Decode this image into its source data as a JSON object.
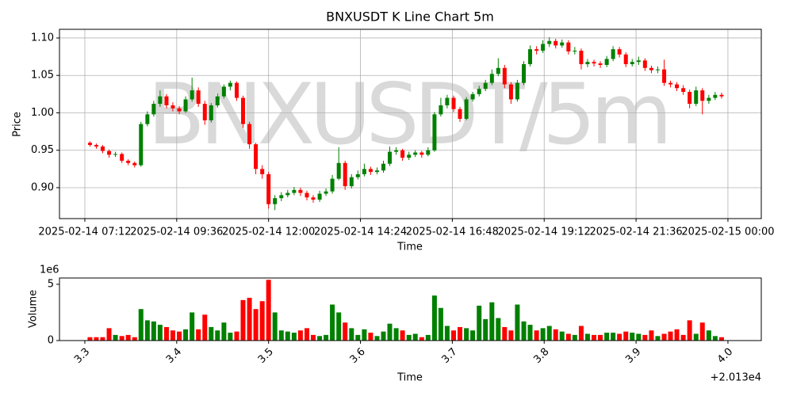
{
  "chart_data": [
    {
      "type": "candlestick",
      "title": "BNXUSDT K Line Chart 5m",
      "watermark": "BNXUSDT/5m",
      "xlabel": "Time",
      "ylabel": "Price",
      "up_color": "#008000",
      "down_color": "#ff0000",
      "grid": true,
      "xlim": [
        3.2724,
        4.0363
      ],
      "ylim": [
        0.8587,
        1.1116
      ],
      "xticks": [
        {
          "value": 3.3,
          "label": "2025-02-14 07:12"
        },
        {
          "value": 3.4,
          "label": "2025-02-14 09:36"
        },
        {
          "value": 3.5,
          "label": "2025-02-14 12:00"
        },
        {
          "value": 3.6,
          "label": "2025-02-14 14:24"
        },
        {
          "value": 3.7,
          "label": "2025-02-14 16:48"
        },
        {
          "value": 3.8,
          "label": "2025-02-14 19:12"
        },
        {
          "value": 3.9,
          "label": "2025-02-14 21:36"
        },
        {
          "value": 4.0,
          "label": "2025-02-15 00:00"
        }
      ],
      "yticks": [
        {
          "value": 0.9,
          "label": "0.90"
        },
        0.95,
        {
          "value": 1.0,
          "label": "1.00"
        },
        1.05,
        {
          "value": 1.1,
          "label": "1.10"
        }
      ],
      "x": [
        3.3056,
        3.3125,
        3.3194,
        3.3264,
        3.3333,
        3.3403,
        3.3472,
        3.3542,
        3.3611,
        3.3681,
        3.375,
        3.3819,
        3.3889,
        3.3958,
        3.4028,
        3.4097,
        3.4167,
        3.4236,
        3.4306,
        3.4375,
        3.4444,
        3.4514,
        3.4583,
        3.4653,
        3.4722,
        3.4792,
        3.4861,
        3.4931,
        3.5,
        3.5069,
        3.5139,
        3.5208,
        3.5278,
        3.5347,
        3.5417,
        3.5486,
        3.5556,
        3.5625,
        3.5694,
        3.5764,
        3.5833,
        3.5903,
        3.5972,
        3.6042,
        3.6111,
        3.6181,
        3.625,
        3.6319,
        3.6389,
        3.6458,
        3.6528,
        3.6597,
        3.6667,
        3.6736,
        3.6806,
        3.6875,
        3.6944,
        3.7014,
        3.7083,
        3.7153,
        3.7222,
        3.7292,
        3.7361,
        3.7431,
        3.75,
        3.7569,
        3.7639,
        3.7708,
        3.7778,
        3.7847,
        3.7917,
        3.7986,
        3.8056,
        3.8125,
        3.8194,
        3.8264,
        3.8333,
        3.8403,
        3.8472,
        3.8542,
        3.8611,
        3.8681,
        3.875,
        3.8819,
        3.8889,
        3.8958,
        3.9028,
        3.9097,
        3.9167,
        3.9236,
        3.9306,
        3.9375,
        3.9444,
        3.9514,
        3.9583,
        3.9653,
        3.9722,
        3.9792,
        3.9861,
        3.9931
      ],
      "open": [
        0.96,
        0.957,
        0.955,
        0.949,
        0.944,
        0.945,
        0.936,
        0.933,
        0.93,
        0.985,
        0.998,
        1.012,
        1.022,
        1.01,
        1.006,
        1.002,
        1.018,
        1.03,
        1.012,
        0.99,
        1.01,
        1.022,
        1.035,
        1.04,
        1.02,
        0.985,
        0.958,
        0.925,
        0.918,
        0.878,
        0.886,
        0.89,
        0.893,
        0.897,
        0.893,
        0.887,
        0.884,
        0.892,
        0.895,
        0.912,
        0.933,
        0.902,
        0.914,
        0.918,
        0.925,
        0.921,
        0.923,
        0.932,
        0.948,
        0.95,
        0.94,
        0.944,
        0.947,
        0.944,
        0.95,
        0.998,
        1.01,
        1.02,
        1.005,
        0.992,
        1.018,
        1.025,
        1.032,
        1.04,
        1.052,
        1.06,
        1.038,
        1.018,
        1.04,
        1.065,
        1.085,
        1.083,
        1.092,
        1.096,
        1.09,
        1.094,
        1.082,
        1.083,
        1.065,
        1.068,
        1.066,
        1.064,
        1.072,
        1.085,
        1.078,
        1.065,
        1.068,
        1.07,
        1.06,
        1.057,
        1.058,
        1.04,
        1.038,
        1.033,
        1.028,
        1.012,
        1.03,
        1.016,
        1.02,
        1.024
      ],
      "high": [
        0.962,
        0.959,
        0.957,
        0.951,
        0.948,
        0.947,
        0.938,
        0.935,
        0.988,
        1.002,
        1.016,
        1.03,
        1.025,
        1.014,
        1.009,
        1.022,
        1.047,
        1.034,
        1.016,
        1.013,
        1.026,
        1.038,
        1.043,
        1.042,
        1.023,
        0.988,
        0.96,
        0.93,
        0.921,
        0.89,
        0.894,
        0.897,
        0.901,
        0.9,
        0.896,
        0.89,
        0.896,
        0.899,
        0.917,
        0.954,
        0.936,
        0.918,
        0.923,
        0.932,
        0.928,
        0.927,
        0.936,
        0.955,
        0.954,
        0.952,
        0.948,
        0.95,
        0.949,
        0.954,
        1.001,
        1.02,
        1.024,
        1.023,
        1.008,
        1.021,
        1.028,
        1.036,
        1.044,
        1.058,
        1.073,
        1.064,
        1.041,
        1.044,
        1.069,
        1.09,
        1.089,
        1.097,
        1.101,
        1.099,
        1.098,
        1.097,
        1.088,
        1.086,
        1.072,
        1.071,
        1.069,
        1.076,
        1.089,
        1.088,
        1.081,
        1.072,
        1.075,
        1.073,
        1.063,
        1.062,
        1.071,
        1.043,
        1.041,
        1.037,
        1.031,
        1.035,
        1.033,
        1.024,
        1.028,
        1.027
      ],
      "low": [
        0.955,
        0.952,
        0.946,
        0.94,
        0.941,
        0.933,
        0.93,
        0.927,
        0.928,
        0.982,
        0.995,
        1.008,
        1.006,
        1.002,
        0.998,
        1.0,
        1.015,
        1.008,
        0.984,
        0.987,
        1.007,
        1.019,
        1.03,
        1.016,
        0.98,
        0.952,
        0.918,
        0.912,
        0.872,
        0.87,
        0.882,
        0.887,
        0.89,
        0.889,
        0.883,
        0.88,
        0.881,
        0.889,
        0.892,
        0.91,
        0.897,
        0.899,
        0.911,
        0.915,
        0.917,
        0.918,
        0.92,
        0.929,
        0.944,
        0.936,
        0.937,
        0.941,
        0.94,
        0.942,
        0.948,
        0.995,
        1.006,
        1.001,
        0.988,
        0.99,
        1.015,
        1.022,
        1.029,
        1.037,
        1.049,
        1.033,
        1.012,
        1.015,
        1.037,
        1.062,
        1.078,
        1.08,
        1.088,
        1.086,
        1.087,
        1.078,
        1.078,
        1.058,
        1.061,
        1.062,
        1.06,
        1.061,
        1.069,
        1.074,
        1.061,
        1.062,
        1.064,
        1.056,
        1.053,
        1.053,
        1.036,
        1.034,
        1.029,
        1.024,
        1.006,
        1.009,
        0.998,
        1.012,
        1.017,
        1.019
      ],
      "close": [
        0.957,
        0.955,
        0.949,
        0.944,
        0.945,
        0.936,
        0.933,
        0.93,
        0.985,
        0.998,
        1.012,
        1.022,
        1.01,
        1.006,
        1.002,
        1.018,
        1.03,
        1.012,
        0.99,
        1.01,
        1.022,
        1.035,
        1.04,
        1.02,
        0.985,
        0.958,
        0.925,
        0.918,
        0.878,
        0.886,
        0.89,
        0.893,
        0.897,
        0.893,
        0.887,
        0.884,
        0.892,
        0.895,
        0.912,
        0.933,
        0.902,
        0.914,
        0.918,
        0.925,
        0.921,
        0.923,
        0.932,
        0.948,
        0.95,
        0.94,
        0.944,
        0.947,
        0.944,
        0.95,
        0.998,
        1.01,
        1.02,
        1.005,
        0.992,
        1.018,
        1.025,
        1.032,
        1.04,
        1.052,
        1.06,
        1.038,
        1.018,
        1.04,
        1.065,
        1.085,
        1.083,
        1.092,
        1.096,
        1.09,
        1.094,
        1.082,
        1.083,
        1.065,
        1.068,
        1.066,
        1.064,
        1.072,
        1.085,
        1.078,
        1.065,
        1.068,
        1.07,
        1.06,
        1.057,
        1.058,
        1.04,
        1.038,
        1.033,
        1.028,
        1.012,
        1.03,
        1.016,
        1.02,
        1.024,
        1.022
      ]
    },
    {
      "type": "volume",
      "xlabel": "Time",
      "ylabel": "Volume",
      "y_offset_label": "1e6",
      "x_offset_label": "+2.013e4",
      "xlim": [
        3.2724,
        4.0363
      ],
      "ylim": [
        0,
        5.56
      ],
      "xticks": [
        3.3,
        3.4,
        3.5,
        3.6,
        3.7,
        3.8,
        3.9,
        {
          "value": 4.0,
          "label": "4.0"
        }
      ],
      "yticks": [
        0,
        5
      ],
      "values": [
        0.3,
        0.3,
        0.3,
        1.1,
        0.5,
        0.4,
        0.5,
        0.3,
        2.8,
        1.8,
        1.7,
        1.4,
        1.2,
        0.9,
        0.8,
        1.0,
        2.5,
        1.0,
        2.3,
        1.2,
        0.9,
        1.6,
        0.7,
        0.8,
        3.6,
        3.8,
        2.8,
        3.5,
        5.4,
        2.5,
        0.9,
        0.8,
        0.7,
        0.9,
        1.1,
        0.5,
        0.4,
        0.5,
        3.2,
        2.5,
        1.6,
        1.1,
        0.5,
        1.0,
        0.7,
        0.4,
        0.8,
        1.5,
        1.1,
        0.9,
        0.5,
        0.6,
        0.3,
        0.5,
        4.0,
        2.9,
        1.3,
        0.9,
        1.2,
        1.1,
        0.9,
        3.1,
        1.9,
        3.4,
        2.0,
        1.2,
        0.9,
        3.2,
        1.7,
        1.4,
        0.9,
        1.1,
        1.3,
        1.0,
        0.8,
        0.6,
        0.5,
        1.3,
        0.6,
        0.5,
        0.5,
        0.7,
        0.7,
        0.6,
        0.8,
        0.7,
        0.6,
        0.5,
        0.9,
        0.4,
        0.6,
        0.8,
        1.0,
        0.5,
        1.8,
        0.6,
        1.6,
        0.9,
        0.4,
        0.3
      ]
    }
  ]
}
